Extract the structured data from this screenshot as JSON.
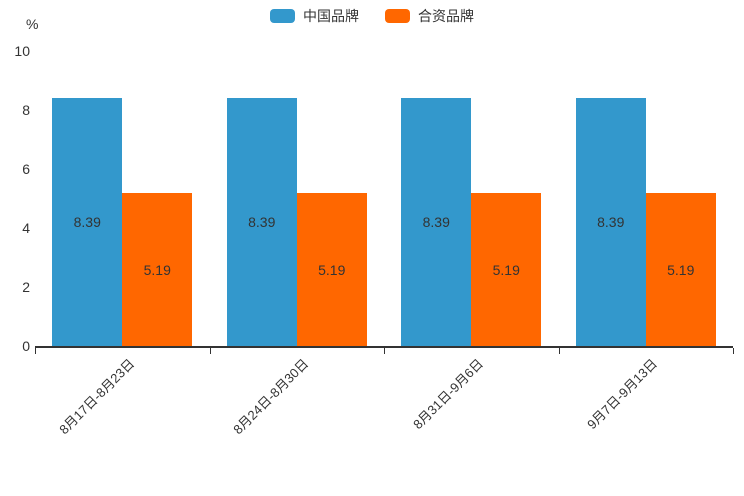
{
  "chart_data": {
    "type": "bar",
    "title": "",
    "unit_label": "%",
    "categories": [
      "8月17日-8月23日",
      "8月24日-8月30日",
      "8月31日-9月6日",
      "9月7日-9月13日"
    ],
    "series": [
      {
        "name": "中国品牌",
        "color": "#3398CC",
        "values": [
          8.39,
          8.39,
          8.39,
          8.39
        ]
      },
      {
        "name": "合资品牌",
        "color": "#FF6700",
        "values": [
          5.19,
          5.19,
          5.19,
          5.19
        ]
      }
    ],
    "ylim": [
      0,
      10
    ],
    "yticks": [
      0,
      2,
      4,
      6,
      8,
      10
    ],
    "legend_position": "top-center",
    "grid": false,
    "value_labels": "inside-center",
    "xlabel": "",
    "ylabel": "%"
  },
  "colors": {
    "axis": "#333333",
    "text": "#333333",
    "background": "#ffffff"
  }
}
